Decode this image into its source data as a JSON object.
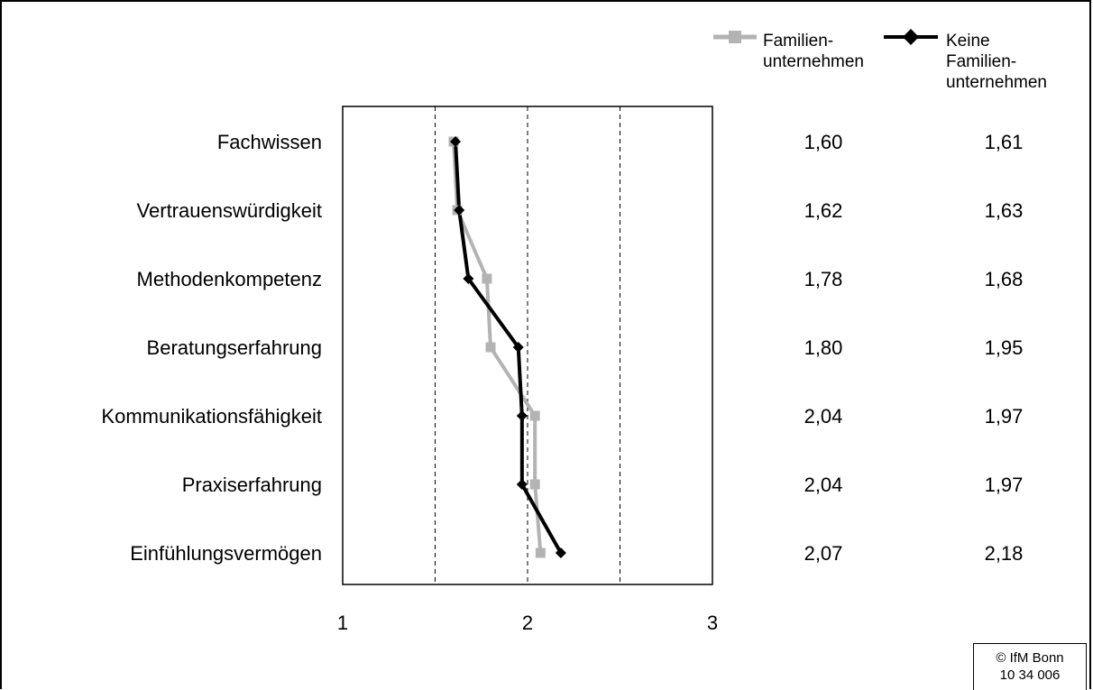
{
  "chart_data": {
    "type": "line",
    "orientation": "horizontal-profile",
    "categories": [
      "Fachwissen",
      "Vertrauenswürdigkeit",
      "Methodenkompetenz",
      "Beratungserfahrung",
      "Kommunikationsfähigkeit",
      "Praxiserfahrung",
      "Einfühlungsvermögen"
    ],
    "series": [
      {
        "name": "Familien-\nunternehmen",
        "color": "#b3b3b3",
        "marker": "square",
        "values": [
          1.6,
          1.62,
          1.78,
          1.8,
          2.04,
          2.04,
          2.07
        ],
        "labels": [
          "1,60",
          "1,62",
          "1,78",
          "1,80",
          "2,04",
          "2,04",
          "2,07"
        ]
      },
      {
        "name": "Keine\nFamilien-\nunternehmen",
        "color": "#000000",
        "marker": "diamond",
        "values": [
          1.61,
          1.63,
          1.68,
          1.95,
          1.97,
          1.97,
          2.18
        ],
        "labels": [
          "1,61",
          "1,63",
          "1,68",
          "1,95",
          "1,97",
          "1,97",
          "2,18"
        ]
      }
    ],
    "xlim": [
      1,
      3
    ],
    "xticks": [
      1,
      2,
      3
    ],
    "xtick_labels": [
      "1",
      "2",
      "3"
    ],
    "gridlines": [
      1.5,
      2,
      2.5
    ],
    "grid_style": "dashed",
    "legend": "top-right"
  },
  "footer": {
    "copyright": "© IfM Bonn\n10 34 006"
  }
}
